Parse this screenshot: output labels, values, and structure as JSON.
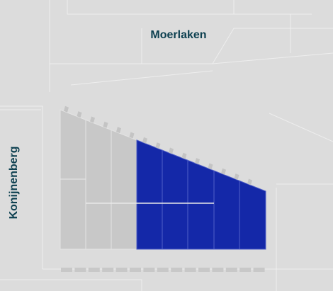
{
  "labels": {
    "north": "Moerlaken",
    "west": "Konijnenberg"
  }
}
